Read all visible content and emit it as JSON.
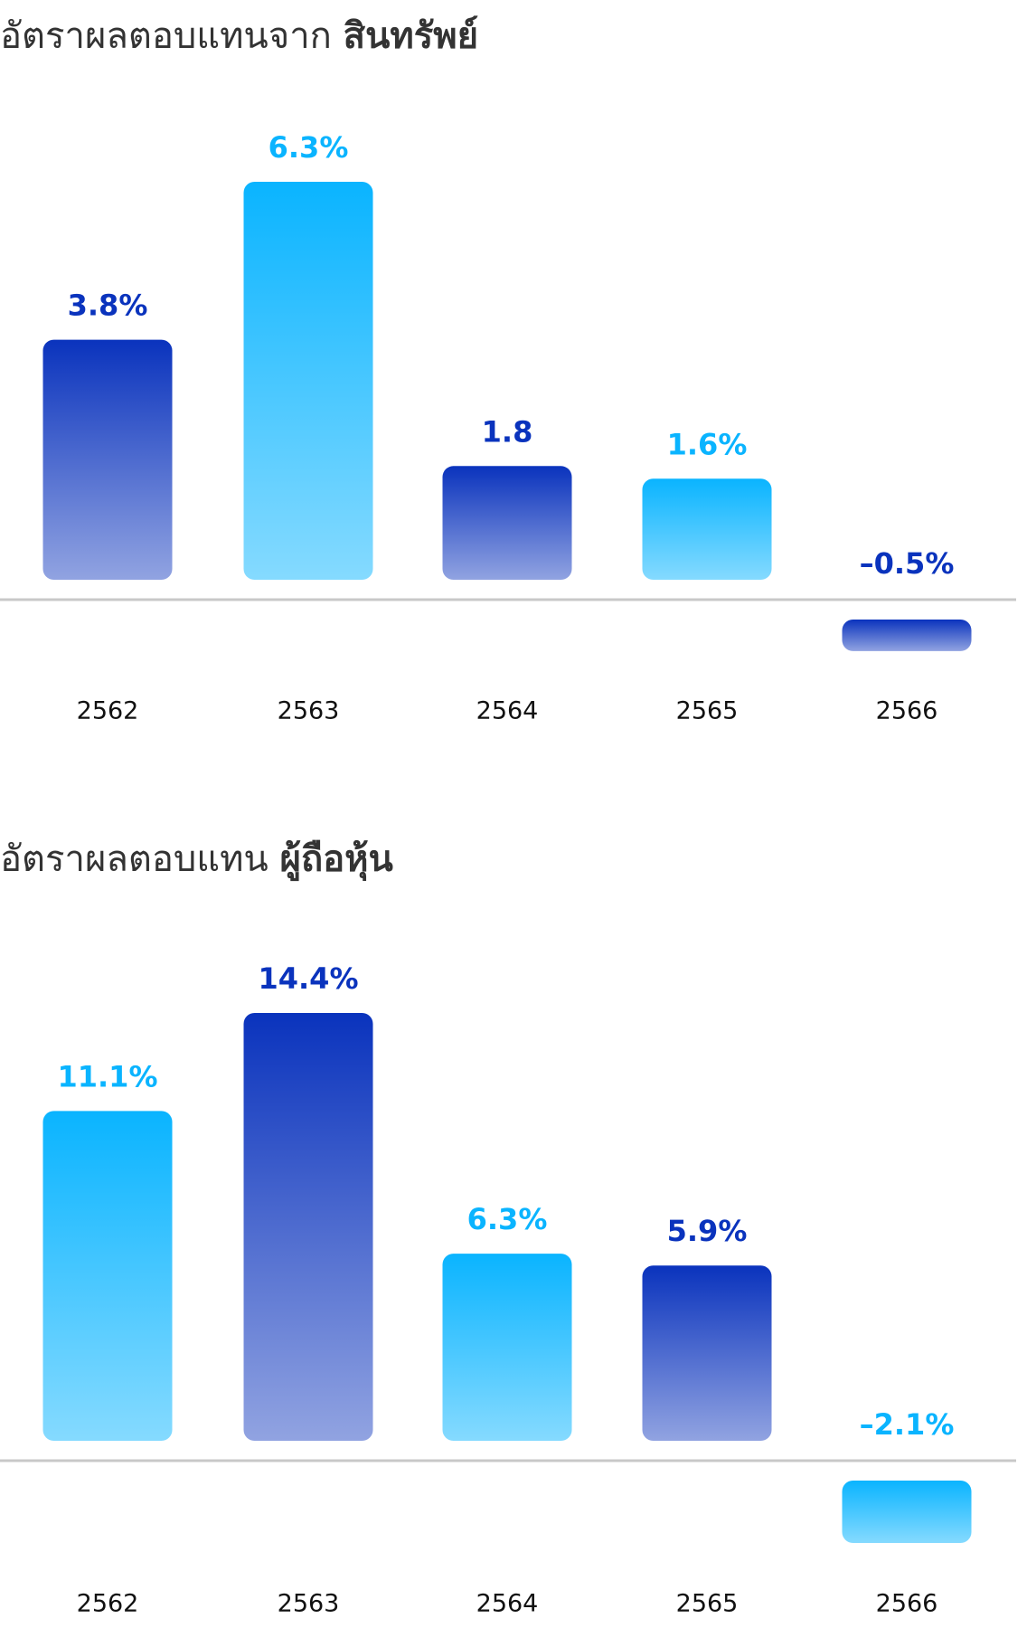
{
  "chart_data": [
    {
      "type": "bar",
      "title": "อัตราผลตอบแทนจาก",
      "title_bold": "สินทรัพย์",
      "categories": [
        "2562",
        "2563",
        "2564",
        "2565",
        "2566"
      ],
      "values": [
        3.8,
        6.3,
        1.8,
        1.6,
        -0.5
      ],
      "value_labels": [
        "3.8%",
        "6.3%",
        "1.8",
        "1.6%",
        "–0.5%"
      ],
      "colors": [
        "#0a33bd",
        "#0ab4ff",
        "#0a33bd",
        "#0ab4ff",
        "#0a33bd"
      ]
    },
    {
      "type": "bar",
      "title": "อัตราผลตอบแทน",
      "title_bold": "ผู้ถือหุ้น",
      "categories": [
        "2562",
        "2563",
        "2564",
        "2565",
        "2566"
      ],
      "values": [
        11.1,
        14.4,
        6.3,
        5.9,
        -2.1
      ],
      "value_labels": [
        "11.1%",
        "14.4%",
        "6.3%",
        "5.9%",
        "–2.1%"
      ],
      "colors": [
        "#0ab4ff",
        "#0a33bd",
        "#0ab4ff",
        "#0a33bd",
        "#0ab4ff"
      ]
    }
  ]
}
